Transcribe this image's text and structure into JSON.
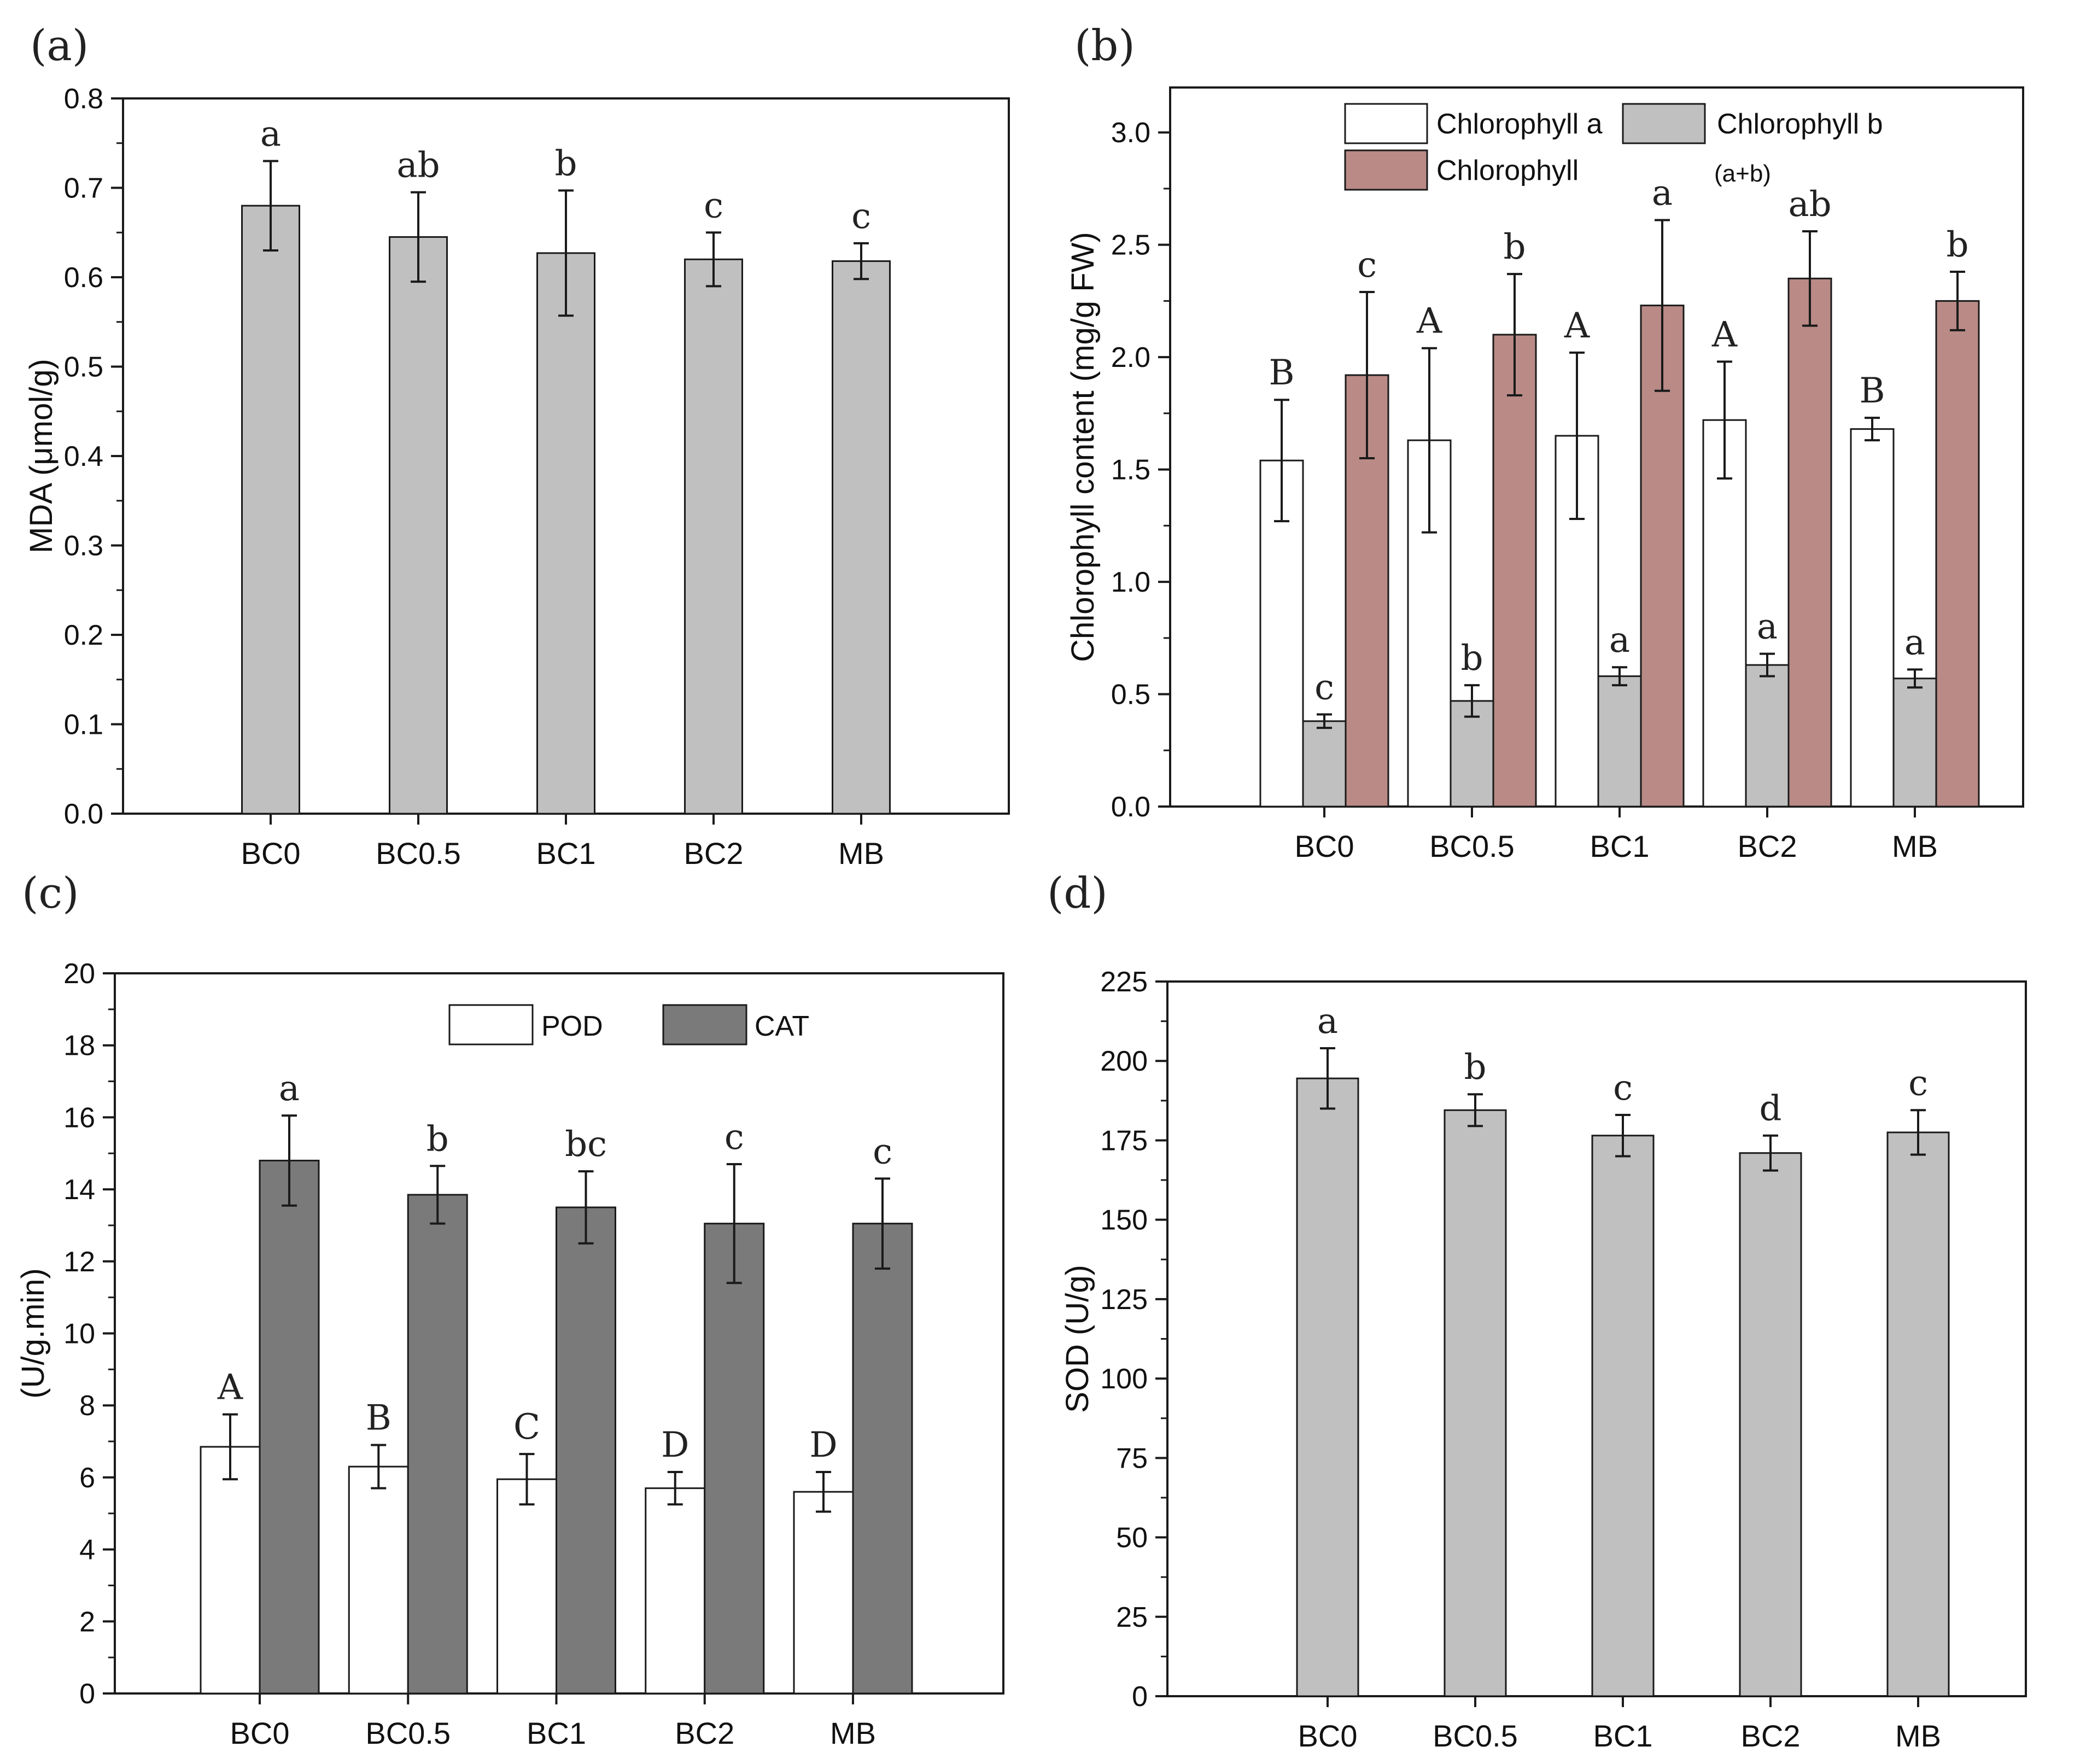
{
  "colors": {
    "light_gray": "#c0c0c0",
    "dark_gray": "#7a7a7a",
    "rose": "#b98a86",
    "white": "#ffffff",
    "axis": "#1a1a1a"
  },
  "chart_data": [
    {
      "panel": "(a)",
      "type": "bar",
      "ylabel": "MDA (μmol/g)",
      "ylim": [
        0,
        0.8
      ],
      "yticks": [
        0.0,
        0.1,
        0.2,
        0.3,
        0.4,
        0.5,
        0.6,
        0.7,
        0.8
      ],
      "ytick_decimals": 1,
      "categories": [
        "BC0",
        "BC0.5",
        "BC1",
        "BC2",
        "MB"
      ],
      "series": [
        {
          "name": "MDA",
          "color": "#c0c0c0",
          "values": [
            0.68,
            0.645,
            0.627,
            0.62,
            0.618
          ],
          "errors": [
            0.05,
            0.05,
            0.07,
            0.03,
            0.02
          ],
          "labels": [
            "a",
            "ab",
            "b",
            "c",
            "c"
          ]
        }
      ],
      "legend": null
    },
    {
      "panel": "(b)",
      "type": "bar",
      "ylabel": "Chlorophyll content (mg/g FW)",
      "ylim": [
        0,
        3.2
      ],
      "yticks": [
        0.0,
        0.5,
        1.0,
        1.5,
        2.0,
        2.5,
        3.0
      ],
      "ytick_decimals": 1,
      "categories": [
        "BC0",
        "BC0.5",
        "BC1",
        "BC2",
        "MB"
      ],
      "series": [
        {
          "name": "Chlorophyll a",
          "color": "#ffffff",
          "values": [
            1.54,
            1.63,
            1.65,
            1.72,
            1.68
          ],
          "errors": [
            0.27,
            0.41,
            0.37,
            0.26,
            0.05
          ],
          "labels": [
            "B",
            "A",
            "A",
            "A",
            "B"
          ]
        },
        {
          "name": "Chlorophyll b",
          "color": "#c0c0c0",
          "values": [
            0.38,
            0.47,
            0.58,
            0.63,
            0.57
          ],
          "errors": [
            0.03,
            0.07,
            0.04,
            0.05,
            0.04
          ],
          "labels": [
            "c",
            "b",
            "a",
            "a",
            "a"
          ]
        },
        {
          "name": "Chlorophyll",
          "color": "#b98a86",
          "values": [
            1.92,
            2.1,
            2.23,
            2.35,
            2.25
          ],
          "errors": [
            0.37,
            0.27,
            0.38,
            0.21,
            0.13
          ],
          "labels": [
            "c",
            "b",
            "a",
            "ab",
            "b"
          ]
        }
      ],
      "legend": {
        "items": [
          "Chlorophyll a",
          "Chlorophyll b",
          "Chlorophyll"
        ],
        "note": "(a+b)",
        "placement": "top-center"
      }
    },
    {
      "panel": "(c)",
      "type": "bar",
      "ylabel": "(U/g.min)",
      "ylim": [
        0,
        20
      ],
      "yticks": [
        0,
        2,
        4,
        6,
        8,
        10,
        12,
        14,
        16,
        18,
        20
      ],
      "ytick_decimals": 0,
      "categories": [
        "BC0",
        "BC0.5",
        "BC1",
        "BC2",
        "MB"
      ],
      "series": [
        {
          "name": "POD",
          "color": "#ffffff",
          "values": [
            6.85,
            6.3,
            5.95,
            5.7,
            5.6
          ],
          "errors": [
            0.9,
            0.6,
            0.7,
            0.45,
            0.55
          ],
          "labels": [
            "A",
            "B",
            "C",
            "D",
            "D"
          ]
        },
        {
          "name": "CAT",
          "color": "#7a7a7a",
          "values": [
            14.8,
            13.85,
            13.5,
            13.05,
            13.05
          ],
          "errors": [
            1.25,
            0.8,
            1.0,
            1.65,
            1.25
          ],
          "labels": [
            "a",
            "b",
            "bc",
            "c",
            "c"
          ]
        }
      ],
      "legend": {
        "items": [
          "POD",
          "CAT"
        ],
        "placement": "top-right"
      }
    },
    {
      "panel": "(d)",
      "type": "bar",
      "ylabel": "SOD (U/g)",
      "ylim": [
        0,
        225
      ],
      "yticks": [
        0,
        25,
        50,
        75,
        100,
        125,
        150,
        175,
        200,
        225
      ],
      "ytick_decimals": 0,
      "categories": [
        "BC0",
        "BC0.5",
        "BC1",
        "BC2",
        "MB"
      ],
      "series": [
        {
          "name": "SOD",
          "color": "#c0c0c0",
          "values": [
            194.5,
            184.5,
            176.5,
            171,
            177.5
          ],
          "errors": [
            9.5,
            5,
            6.5,
            5.5,
            7
          ],
          "labels": [
            "a",
            "b",
            "c",
            "d",
            "c"
          ]
        }
      ],
      "legend": null
    }
  ]
}
